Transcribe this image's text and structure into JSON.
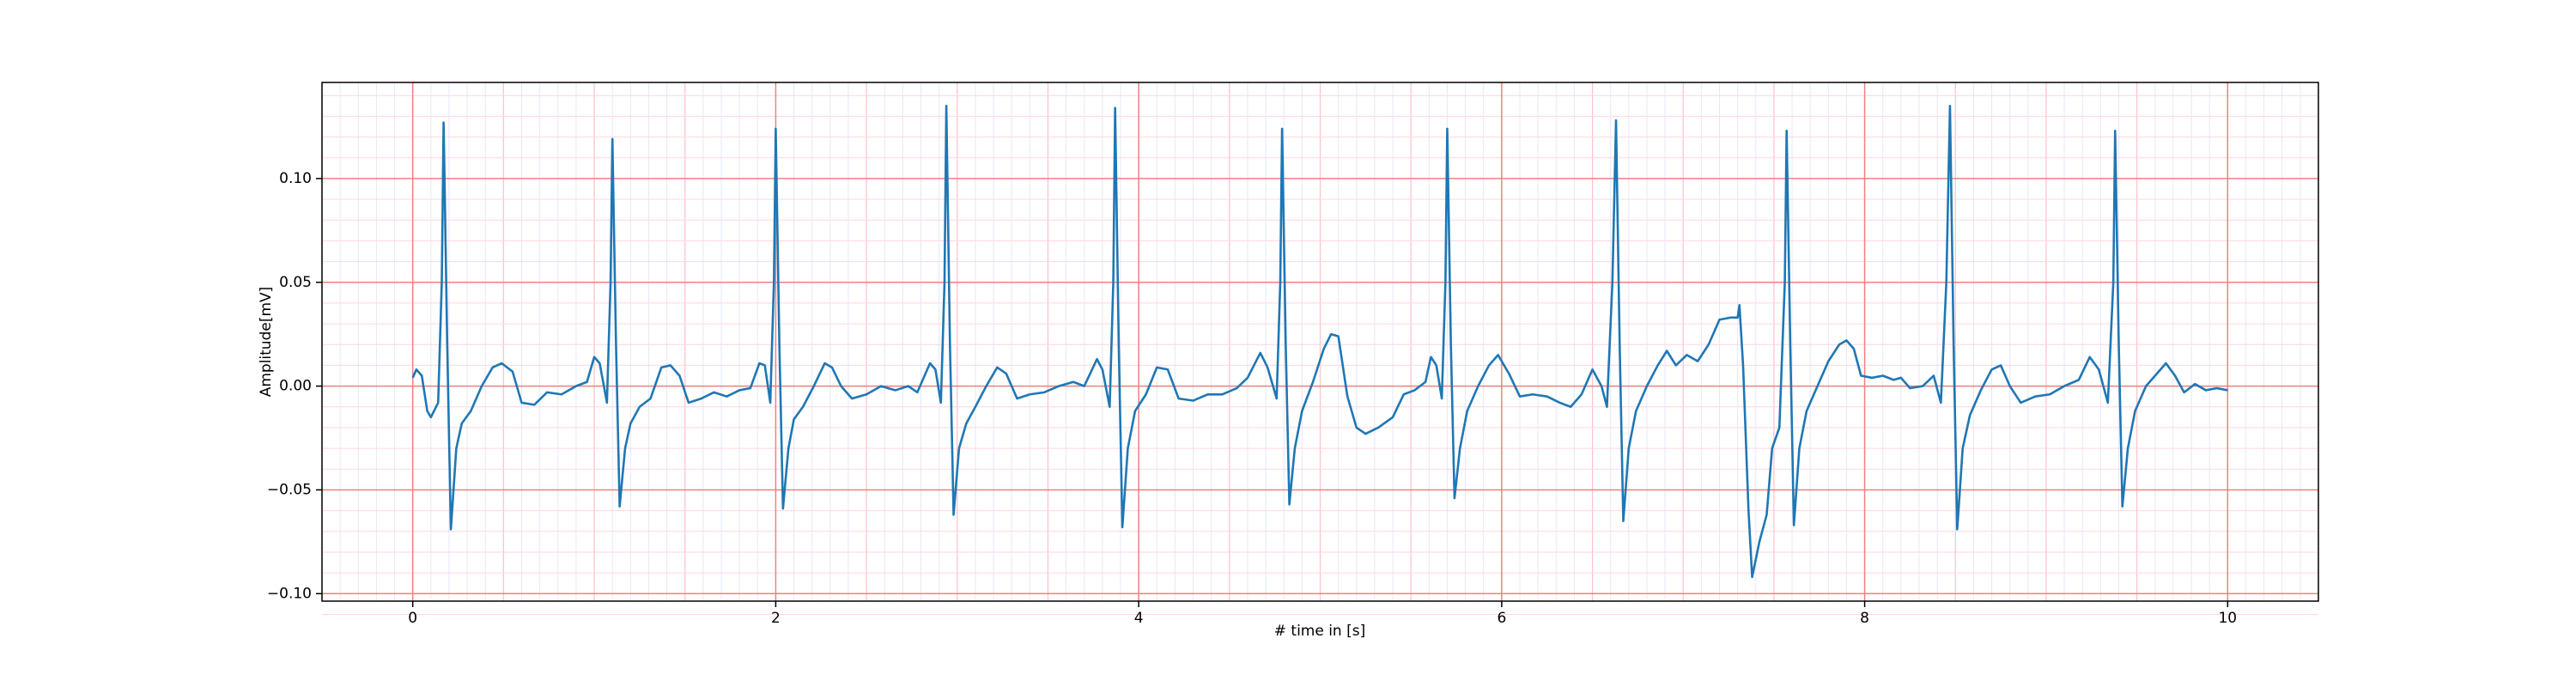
{
  "chart_data": {
    "type": "line",
    "xlabel": "# time in [s]",
    "ylabel": "Amplitude[mV]",
    "color": "#1f77b4",
    "grid": true,
    "minor_grid": true,
    "xlim": [
      -0.5,
      10.5
    ],
    "ylim": [
      -0.1036,
      0.1463
    ],
    "xticks": [
      0,
      2,
      4,
      6,
      8,
      10
    ],
    "yticks": [
      {
        "value": -0.1,
        "label": "−0.10"
      },
      {
        "value": -0.05,
        "label": "−0.05"
      },
      {
        "value": 0,
        "label": "0.00"
      },
      {
        "value": 0.05,
        "label": "0.05"
      },
      {
        "value": 0.1,
        "label": "0.10"
      }
    ],
    "x": [
      0,
      0.02,
      0.05,
      0.08,
      0.1,
      0.14,
      0.16,
      0.17,
      0.19,
      0.21,
      0.24,
      0.27,
      0.32,
      0.38,
      0.44,
      0.49,
      0.55,
      0.6,
      0.67,
      0.74,
      0.82,
      0.9,
      0.96,
      1.0,
      1.03,
      1.07,
      1.09,
      1.1,
      1.12,
      1.14,
      1.17,
      1.2,
      1.25,
      1.31,
      1.37,
      1.42,
      1.47,
      1.52,
      1.59,
      1.66,
      1.73,
      1.8,
      1.86,
      1.91,
      1.94,
      1.97,
      1.99,
      2.0,
      2.02,
      2.04,
      2.07,
      2.1,
      2.15,
      2.21,
      2.27,
      2.31,
      2.36,
      2.42,
      2.5,
      2.58,
      2.66,
      2.73,
      2.78,
      2.85,
      2.88,
      2.91,
      2.93,
      2.94,
      2.96,
      2.98,
      3.01,
      3.05,
      3.1,
      3.16,
      3.22,
      3.27,
      3.33,
      3.4,
      3.48,
      3.56,
      3.64,
      3.7,
      3.77,
      3.8,
      3.84,
      3.86,
      3.87,
      3.89,
      3.91,
      3.94,
      3.98,
      4.04,
      4.1,
      4.16,
      4.22,
      4.3,
      4.38,
      4.46,
      4.54,
      4.6,
      4.67,
      4.71,
      4.76,
      4.78,
      4.79,
      4.81,
      4.83,
      4.86,
      4.9,
      4.96,
      5.02,
      5.06,
      5.1,
      5.15,
      5.2,
      5.25,
      5.32,
      5.4,
      5.46,
      5.52,
      5.58,
      5.61,
      5.64,
      5.67,
      5.69,
      5.7,
      5.72,
      5.74,
      5.77,
      5.81,
      5.87,
      5.93,
      5.98,
      6.04,
      6.1,
      6.17,
      6.25,
      6.32,
      6.38,
      6.44,
      6.5,
      6.55,
      6.58,
      6.61,
      6.63,
      6.65,
      6.67,
      6.7,
      6.74,
      6.8,
      6.86,
      6.91,
      6.96,
      7.02,
      7.08,
      7.14,
      7.2,
      7.26,
      7.3,
      7.31,
      7.33,
      7.36,
      7.38,
      7.42,
      7.46,
      7.49,
      7.53,
      7.56,
      7.57,
      7.59,
      7.61,
      7.64,
      7.68,
      7.74,
      7.8,
      7.86,
      7.9,
      7.94,
      7.98,
      8.04,
      8.1,
      8.16,
      8.2,
      8.25,
      8.32,
      8.38,
      8.42,
      8.45,
      8.47,
      8.49,
      8.51,
      8.54,
      8.58,
      8.64,
      8.7,
      8.75,
      8.8,
      8.86,
      8.94,
      9.02,
      9.1,
      9.18,
      9.24,
      9.29,
      9.34,
      9.37,
      9.38,
      9.4,
      9.42,
      9.45,
      9.49,
      9.55,
      9.61,
      9.66,
      9.71,
      9.76,
      9.82,
      9.88,
      9.94,
      10.0
    ],
    "values": [
      0.004,
      0.008,
      0.005,
      -0.012,
      -0.015,
      -0.008,
      0.05,
      0.127,
      0.02,
      -0.069,
      -0.03,
      -0.018,
      -0.012,
      0.0,
      0.009,
      0.011,
      0.007,
      -0.008,
      -0.009,
      -0.003,
      -0.004,
      0.0,
      0.002,
      0.014,
      0.011,
      -0.008,
      0.05,
      0.119,
      0.02,
      -0.058,
      -0.03,
      -0.018,
      -0.01,
      -0.006,
      0.009,
      0.01,
      0.005,
      -0.008,
      -0.006,
      -0.003,
      -0.005,
      -0.002,
      -0.001,
      0.011,
      0.01,
      -0.008,
      0.05,
      0.124,
      0.02,
      -0.059,
      -0.03,
      -0.016,
      -0.01,
      0.0,
      0.011,
      0.009,
      0.0,
      -0.006,
      -0.004,
      0.0,
      -0.002,
      0.0,
      -0.003,
      0.011,
      0.008,
      -0.008,
      0.05,
      0.135,
      0.02,
      -0.062,
      -0.03,
      -0.018,
      -0.01,
      0.0,
      0.009,
      0.006,
      -0.006,
      -0.004,
      -0.003,
      0.0,
      0.002,
      0.0,
      0.013,
      0.008,
      -0.01,
      0.05,
      0.134,
      0.02,
      -0.068,
      -0.03,
      -0.012,
      -0.004,
      0.009,
      0.008,
      -0.006,
      -0.007,
      -0.004,
      -0.004,
      -0.001,
      0.004,
      0.016,
      0.009,
      -0.006,
      0.05,
      0.124,
      0.02,
      -0.057,
      -0.03,
      -0.012,
      0.002,
      0.018,
      0.025,
      0.024,
      -0.005,
      -0.02,
      -0.023,
      -0.02,
      -0.015,
      -0.004,
      -0.002,
      0.002,
      0.014,
      0.01,
      -0.006,
      0.05,
      0.124,
      0.02,
      -0.054,
      -0.03,
      -0.012,
      0.0,
      0.01,
      0.015,
      0.006,
      -0.005,
      -0.004,
      -0.005,
      -0.008,
      -0.01,
      -0.004,
      0.008,
      0.0,
      -0.01,
      0.05,
      0.128,
      0.02,
      -0.065,
      -0.03,
      -0.012,
      0.0,
      0.01,
      0.017,
      0.01,
      0.015,
      0.012,
      0.02,
      0.032,
      0.033,
      0.033,
      0.039,
      0.01,
      -0.06,
      -0.092,
      -0.075,
      -0.062,
      -0.03,
      -0.02,
      0.05,
      0.123,
      0.02,
      -0.067,
      -0.03,
      -0.012,
      0.0,
      0.012,
      0.02,
      0.022,
      0.018,
      0.005,
      0.004,
      0.005,
      0.003,
      0.004,
      -0.001,
      0.0,
      0.005,
      -0.008,
      0.05,
      0.135,
      0.02,
      -0.069,
      -0.03,
      -0.014,
      -0.002,
      0.008,
      0.01,
      0.0,
      -0.008,
      -0.005,
      -0.004,
      0.0,
      0.003,
      0.014,
      0.008,
      -0.008,
      0.05,
      0.123,
      0.02,
      -0.058,
      -0.03,
      -0.012,
      0.0,
      0.006,
      0.011,
      0.005,
      -0.003,
      0.001,
      -0.002,
      -0.001,
      -0.002
    ]
  }
}
